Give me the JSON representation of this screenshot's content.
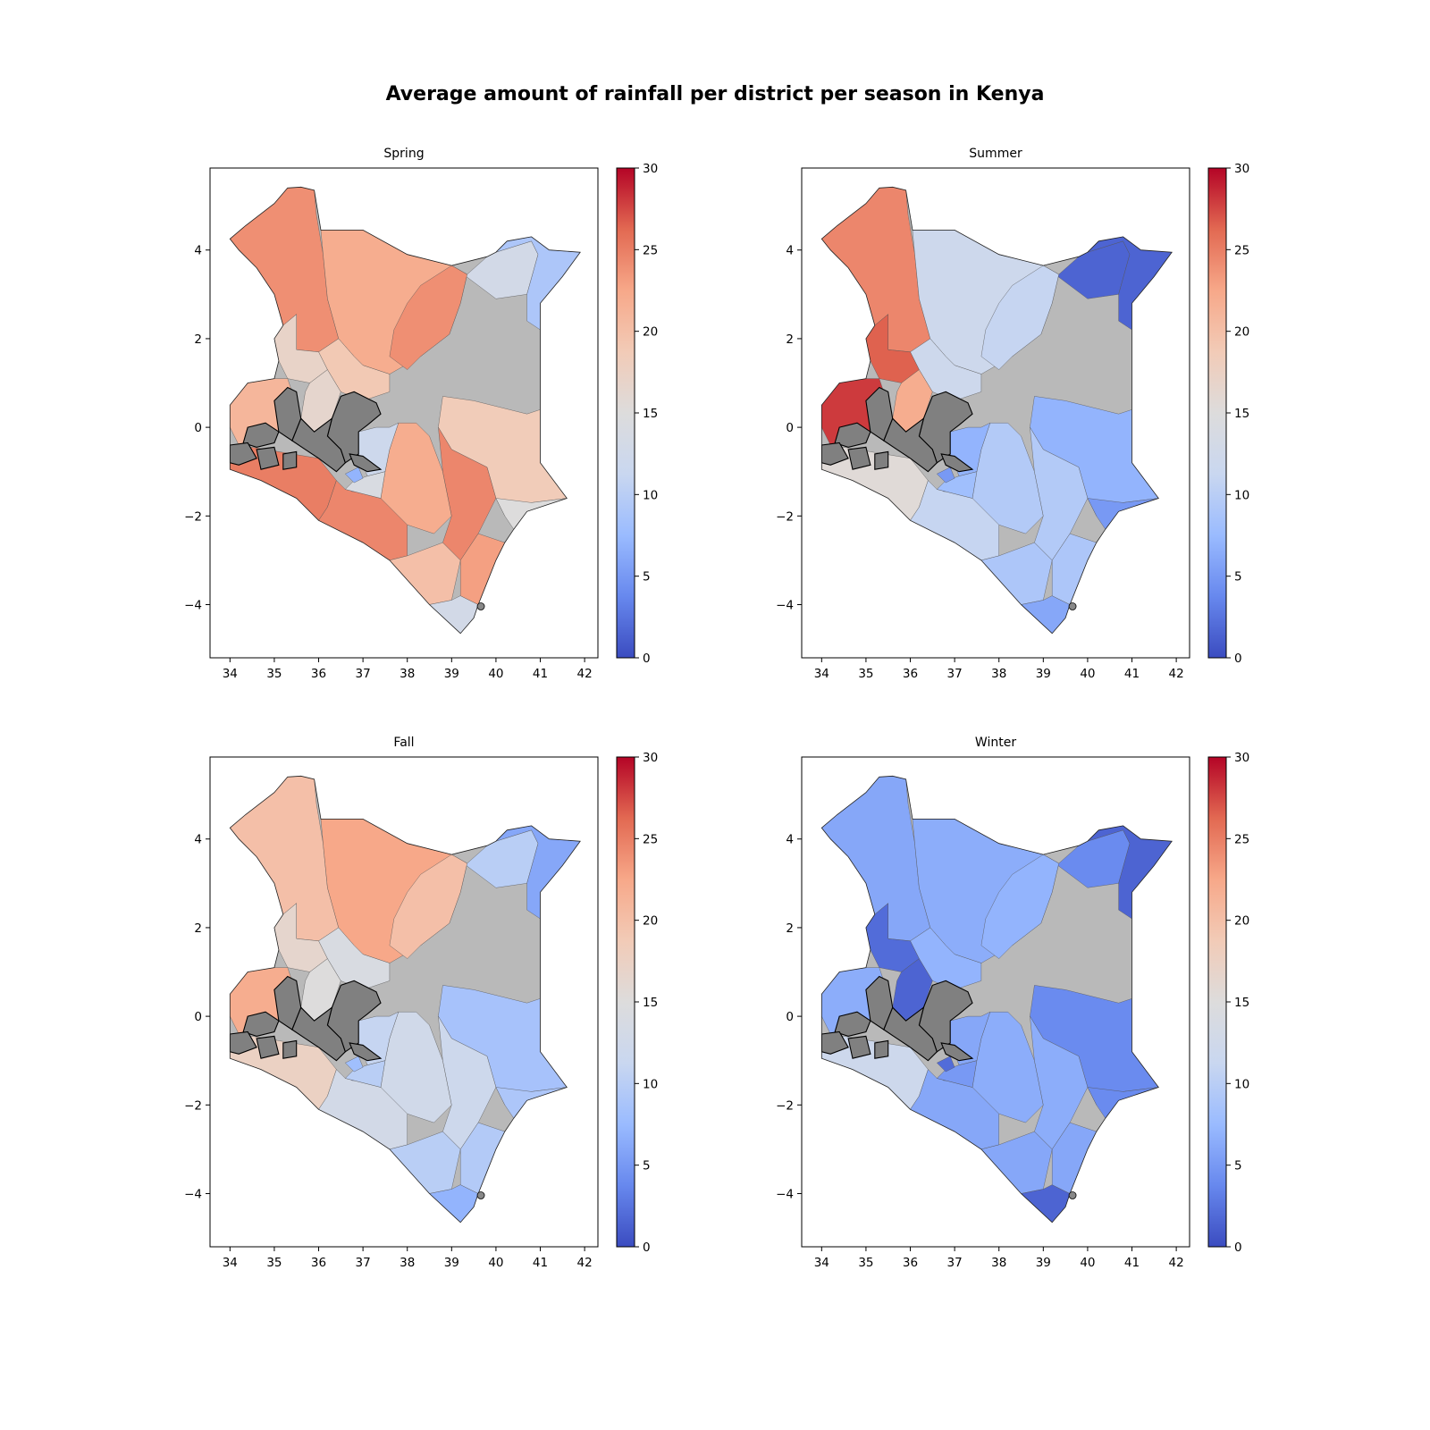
{
  "title": "Average amount of rainfall per district per season in Kenya",
  "colormap": {
    "name": "coolwarm",
    "stops": [
      "#3b4cc0",
      "#6788ee",
      "#9abbff",
      "#c9d7f0",
      "#dddcdc",
      "#f2cbb7",
      "#f7a889",
      "#e26952",
      "#b40426"
    ],
    "missing_color": "#808080"
  },
  "chart_data": [
    {
      "type": "choropleth",
      "title": "Spring",
      "xticks": [
        "34",
        "35",
        "36",
        "37",
        "38",
        "39",
        "40",
        "41",
        "42"
      ],
      "yticks": [
        "4",
        "2",
        "0",
        "−2",
        "−4"
      ],
      "xlim": [
        33.55,
        42.3
      ],
      "ylim": [
        -5.2,
        5.85
      ],
      "colorbar": {
        "min": 0,
        "max": 30,
        "ticks": [
          "0",
          "5",
          "10",
          "15",
          "20",
          "25",
          "30"
        ]
      },
      "regions": [
        {
          "name": "north-west",
          "value": 24
        },
        {
          "name": "north-central",
          "value": 22
        },
        {
          "name": "north-east",
          "value": 13
        },
        {
          "name": "east-wide",
          "value": 18.5
        },
        {
          "name": "far-north-east-tip",
          "value": 9
        },
        {
          "name": "east-central",
          "value": 24
        },
        {
          "name": "samburu",
          "value": 19
        },
        {
          "name": "west-pokot",
          "value": 17
        },
        {
          "name": "baringo",
          "value": 16.5
        },
        {
          "name": "western-cluster",
          "value": 21
        },
        {
          "name": "south-west",
          "value": 25
        },
        {
          "name": "kajiado",
          "value": 24.5
        },
        {
          "name": "machakos-kitui",
          "value": 22
        },
        {
          "name": "tana-river",
          "value": 24.5
        },
        {
          "name": "lamu",
          "value": 15
        },
        {
          "name": "taita-taveta",
          "value": 20
        },
        {
          "name": "kwale",
          "value": 13
        },
        {
          "name": "kilifi",
          "value": 23
        },
        {
          "name": "central-light",
          "value": 12
        },
        {
          "name": "nairobi",
          "value": 4
        },
        {
          "name": "makueni",
          "value": 14
        },
        {
          "name": "kiambu-small",
          "value": 7
        }
      ]
    },
    {
      "type": "choropleth",
      "title": "Summer",
      "xticks": [
        "34",
        "35",
        "36",
        "37",
        "38",
        "39",
        "40",
        "41",
        "42"
      ],
      "yticks": [
        "4",
        "2",
        "0",
        "−2",
        "−4"
      ],
      "xlim": [
        33.55,
        42.3
      ],
      "ylim": [
        -5.2,
        5.85
      ],
      "colorbar": {
        "min": 0,
        "max": 30,
        "ticks": [
          "0",
          "5",
          "10",
          "15",
          "20",
          "25",
          "30"
        ]
      },
      "regions": [
        {
          "name": "north-west",
          "value": 24.5
        },
        {
          "name": "north-central",
          "value": 12
        },
        {
          "name": "north-east",
          "value": 1.5
        },
        {
          "name": "east-wide",
          "value": 7
        },
        {
          "name": "far-north-east-tip",
          "value": 1.5
        },
        {
          "name": "east-central",
          "value": 11
        },
        {
          "name": "samburu",
          "value": 12
        },
        {
          "name": "west-pokot",
          "value": 26.5
        },
        {
          "name": "baringo",
          "value": 22
        },
        {
          "name": "western-cluster",
          "value": 28
        },
        {
          "name": "south-west",
          "value": 15.5
        },
        {
          "name": "kajiado",
          "value": 11
        },
        {
          "name": "machakos-kitui",
          "value": 9.5
        },
        {
          "name": "tana-river",
          "value": 9.5
        },
        {
          "name": "lamu",
          "value": 5
        },
        {
          "name": "taita-taveta",
          "value": 9
        },
        {
          "name": "kwale",
          "value": 6
        },
        {
          "name": "kilifi",
          "value": 9
        },
        {
          "name": "central-light",
          "value": 7
        },
        {
          "name": "nairobi",
          "value": 1.5
        },
        {
          "name": "makueni",
          "value": 8
        },
        {
          "name": "kiambu-small",
          "value": 5
        }
      ]
    },
    {
      "type": "choropleth",
      "title": "Fall",
      "xticks": [
        "34",
        "35",
        "36",
        "37",
        "38",
        "39",
        "40",
        "41",
        "42"
      ],
      "yticks": [
        "4",
        "2",
        "0",
        "−2",
        "−4"
      ],
      "xlim": [
        33.55,
        42.3
      ],
      "ylim": [
        -5.2,
        5.85
      ],
      "colorbar": {
        "min": 0,
        "max": 30,
        "ticks": [
          "0",
          "5",
          "10",
          "15",
          "20",
          "25",
          "30"
        ]
      },
      "regions": [
        {
          "name": "north-west",
          "value": 20
        },
        {
          "name": "north-central",
          "value": 22.5
        },
        {
          "name": "north-east",
          "value": 10
        },
        {
          "name": "east-wide",
          "value": 8.5
        },
        {
          "name": "far-north-east-tip",
          "value": 6
        },
        {
          "name": "east-central",
          "value": 20
        },
        {
          "name": "samburu",
          "value": 14
        },
        {
          "name": "west-pokot",
          "value": 16.5
        },
        {
          "name": "baringo",
          "value": 15
        },
        {
          "name": "western-cluster",
          "value": 22
        },
        {
          "name": "south-west",
          "value": 17.5
        },
        {
          "name": "kajiado",
          "value": 13
        },
        {
          "name": "machakos-kitui",
          "value": 12.5
        },
        {
          "name": "tana-river",
          "value": 12
        },
        {
          "name": "lamu",
          "value": 9
        },
        {
          "name": "taita-taveta",
          "value": 10
        },
        {
          "name": "kwale",
          "value": 7
        },
        {
          "name": "kilifi",
          "value": 9.5
        },
        {
          "name": "central-light",
          "value": 11
        },
        {
          "name": "nairobi",
          "value": 3
        },
        {
          "name": "makueni",
          "value": 10
        },
        {
          "name": "kiambu-small",
          "value": 8
        }
      ]
    },
    {
      "type": "choropleth",
      "title": "Winter",
      "xticks": [
        "34",
        "35",
        "36",
        "37",
        "38",
        "39",
        "40",
        "41",
        "42"
      ],
      "yticks": [
        "4",
        "2",
        "0",
        "−2",
        "−4"
      ],
      "xlim": [
        33.55,
        42.3
      ],
      "ylim": [
        -5.2,
        5.85
      ],
      "colorbar": {
        "min": 0,
        "max": 30,
        "ticks": [
          "0",
          "5",
          "10",
          "15",
          "20",
          "25",
          "30"
        ]
      },
      "regions": [
        {
          "name": "north-west",
          "value": 6
        },
        {
          "name": "north-central",
          "value": 6.5
        },
        {
          "name": "north-east",
          "value": 4
        },
        {
          "name": "east-wide",
          "value": 4
        },
        {
          "name": "far-north-east-tip",
          "value": 1.5
        },
        {
          "name": "east-central",
          "value": 7
        },
        {
          "name": "samburu",
          "value": 7
        },
        {
          "name": "west-pokot",
          "value": 2
        },
        {
          "name": "baringo",
          "value": 1.5
        },
        {
          "name": "western-cluster",
          "value": 6.5
        },
        {
          "name": "south-west",
          "value": 12
        },
        {
          "name": "kajiado",
          "value": 6
        },
        {
          "name": "machakos-kitui",
          "value": 6.5
        },
        {
          "name": "tana-river",
          "value": 6.5
        },
        {
          "name": "lamu",
          "value": 4
        },
        {
          "name": "taita-taveta",
          "value": 6
        },
        {
          "name": "kwale",
          "value": 1.5
        },
        {
          "name": "kilifi",
          "value": 6
        },
        {
          "name": "central-light",
          "value": 6
        },
        {
          "name": "nairobi",
          "value": 1.5
        },
        {
          "name": "makueni",
          "value": 5
        },
        {
          "name": "kiambu-small",
          "value": 2
        }
      ]
    }
  ]
}
